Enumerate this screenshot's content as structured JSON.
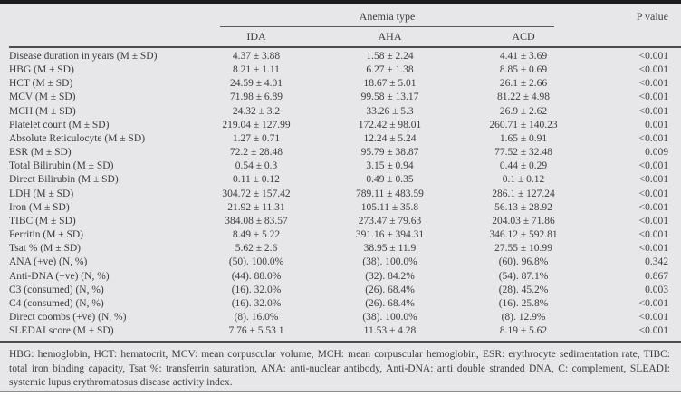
{
  "table": {
    "group_header": "Anemia type",
    "p_header": "P value",
    "columns": [
      "IDA",
      "AHA",
      "ACD"
    ],
    "rows": [
      {
        "label": "Disease duration in years (M ± SD)",
        "ida": "4.37 ± 3.88",
        "aha": "1.58 ± 2.24",
        "acd": "4.41 ± 3.69",
        "p": "<0.001"
      },
      {
        "label": "HBG (M ± SD)",
        "ida": "8.21 ± 1.11",
        "aha": "6.27 ± 1.38",
        "acd": "8.85 ± 0.69",
        "p": "<0.001"
      },
      {
        "label": "HCT (M ± SD)",
        "ida": "24.59 ± 4.01",
        "aha": "18.67 ± 5.01",
        "acd": "26.1 ± 2.66",
        "p": "<0.001"
      },
      {
        "label": "MCV (M ± SD)",
        "ida": "71.98 ± 6.89",
        "aha": "99.58 ± 13.17",
        "acd": "81.22 ± 4.98",
        "p": "<0.001"
      },
      {
        "label": "MCH (M ± SD)",
        "ida": "24.32 ± 3.2",
        "aha": "33.26 ± 5.3",
        "acd": "26.9 ± 2.62",
        "p": "<0.001"
      },
      {
        "label": "Platelet count (M ± SD)",
        "ida": "219.04 ± 127.99",
        "aha": "172.42 ± 98.01",
        "acd": "260.71 ± 140.23",
        "p": "0.001"
      },
      {
        "label": "Absolute Reticulocyte (M ± SD)",
        "ida": "1.27 ± 0.71",
        "aha": "12.24 ± 5.24",
        "acd": "1.65 ± 0.91",
        "p": "<0.001"
      },
      {
        "label": "ESR (M ± SD)",
        "ida": "72.2 ± 28.48",
        "aha": "95.79 ± 38.87",
        "acd": "77.52 ± 32.48",
        "p": "0.009"
      },
      {
        "label": "Total Bilirubin (M ± SD)",
        "ida": "0.54 ± 0.3",
        "aha": "3.15 ± 0.94",
        "acd": "0.44 ± 0.29",
        "p": "<0.001"
      },
      {
        "label": "Direct Bilirubin (M ± SD)",
        "ida": "0.11 ± 0.12",
        "aha": "0.49 ± 0.35",
        "acd": "0.1 ± 0.12",
        "p": "<0.001"
      },
      {
        "label": "LDH (M ± SD)",
        "ida": "304.72 ± 157.42",
        "aha": "789.11 ± 483.59",
        "acd": "286.1 ± 127.24",
        "p": "<0.001"
      },
      {
        "label": "Iron (M ± SD)",
        "ida": "21.92 ± 11.31",
        "aha": "105.11 ± 35.8",
        "acd": "56.13 ± 28.92",
        "p": "<0.001"
      },
      {
        "label": "TIBC (M ± SD)",
        "ida": "384.08 ± 83.57",
        "aha": "273.47 ± 79.63",
        "acd": "204.03 ± 71.86",
        "p": "<0.001"
      },
      {
        "label": "Ferritin (M ± SD)",
        "ida": "8.49 ± 5.22",
        "aha": "391.16 ± 394.31",
        "acd": "346.12 ± 592.81",
        "p": "<0.001"
      },
      {
        "label": "Tsat % (M ± SD)",
        "ida": "5.62 ± 2.6",
        "aha": "38.95 ± 11.9",
        "acd": "27.55 ± 10.99",
        "p": "<0.001"
      },
      {
        "label": "ANA (+ve) (N, %)",
        "ida": "(50). 100.0%",
        "aha": "(38). 100.0%",
        "acd": "(60). 96.8%",
        "p": "0.342"
      },
      {
        "label": "Anti-DNA (+ve) (N, %)",
        "ida": "(44). 88.0%",
        "aha": "(32). 84.2%",
        "acd": "(54). 87.1%",
        "p": "0.867"
      },
      {
        "label": "C3 (consumed) (N, %)",
        "ida": "(16). 32.0%",
        "aha": "(26). 68.4%",
        "acd": "(28). 45.2%",
        "p": "0.003"
      },
      {
        "label": "C4 (consumed) (N, %)",
        "ida": "(16). 32.0%",
        "aha": "(26). 68.4%",
        "acd": "(16). 25.8%",
        "p": "<0.001"
      },
      {
        "label": "Direct coombs (+ve) (N, %)",
        "ida": "(8). 16.0%",
        "aha": "(38). 100.0%",
        "acd": "(8). 12.9%",
        "p": "<0.001"
      },
      {
        "label": "SLEDAI score (M ± SD)",
        "ida": "7.76 ± 5.53 1",
        "aha": "11.53 ± 4.28",
        "acd": "8.19 ± 5.62",
        "p": "<0.001"
      }
    ],
    "footnote": "HBG: hemoglobin, HCT: hematocrit, MCV: mean corpuscular volume, MCH: mean corpuscular hemoglobin, ESR: erythrocyte sedimentation rate, TIBC: total iron binding capacity, Tsat %: transferrin saturation, ANA: anti-nuclear antibody, Anti-DNA: anti double stranded DNA, C: complement, SLEADI: systemic lupus erythromatosus disease activity index."
  }
}
